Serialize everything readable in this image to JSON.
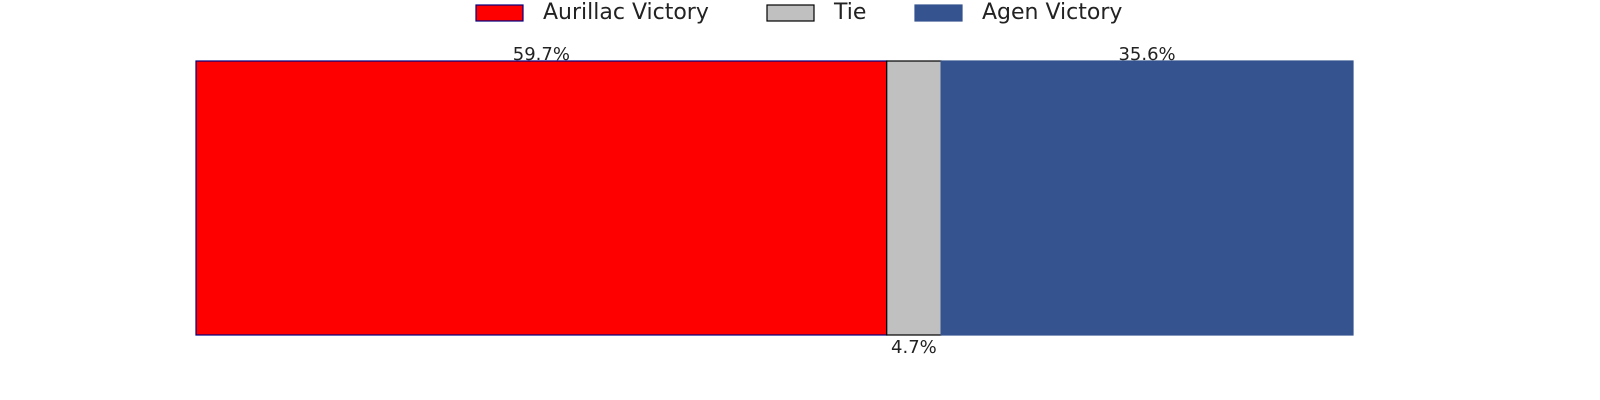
{
  "chart_data": {
    "type": "stacked_bar",
    "orientation": "horizontal",
    "xlim": [
      0,
      100
    ],
    "legend": "upper center",
    "series": [
      {
        "name": "Aurillac Victory",
        "color": "#ff0000",
        "edgecolor": "#000080",
        "values": [
          59.7
        ],
        "value_labels": [
          "59.7%"
        ]
      },
      {
        "name": "Tie",
        "color": "#c0c0c0",
        "edgecolor": "#000000",
        "values": [
          4.7
        ],
        "value_labels": [
          "4.7%"
        ]
      },
      {
        "name": "Agen Victory",
        "color": "#34538f",
        "edgecolor": "#34538f",
        "values": [
          35.6
        ],
        "value_labels": [
          "35.6%"
        ]
      }
    ]
  }
}
